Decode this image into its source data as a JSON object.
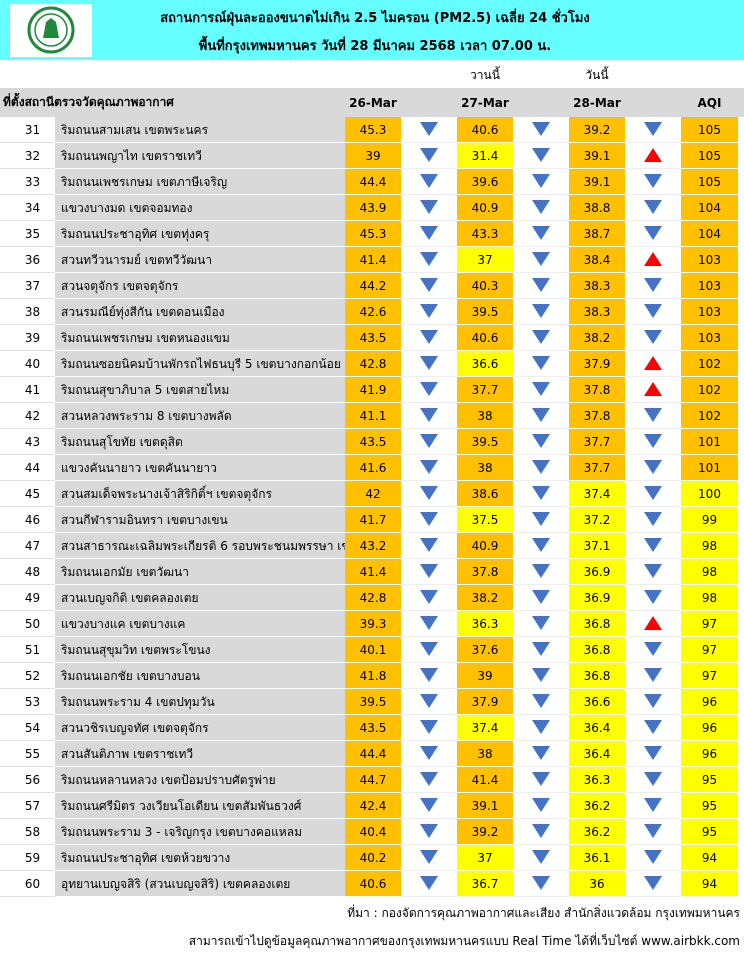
{
  "header": {
    "title": "สถานการณ์ฝุ่นละอองขนาดไม่เกิน 2.5 ไมครอน (PM2.5) เฉลี่ย 24 ชั่วโมง",
    "subtitle": "พื้นที่กรุงเทพมหานคร วันที่ 28 มีนาคม 2568 เวลา 07.00 น."
  },
  "table": {
    "day_labels": [
      "วานนี้",
      "วันนี้"
    ],
    "columns": [
      "ที่ตั้งสถานีตรวจวัดคุณภาพอากาศ",
      "26-Mar",
      "27-Mar",
      "28-Mar",
      "AQI"
    ],
    "fills": {
      "orange": "#ffc000",
      "yellow": "#ffff00"
    },
    "arrow_colors": {
      "down": "#4472c4",
      "up": "#ff0000"
    },
    "rows": [
      {
        "no": 31,
        "location": "ริมถนนสามเสน เขตพระนคร",
        "values": [
          45.3,
          40.6,
          39.2
        ],
        "aqi": 105,
        "arrows": [
          "down",
          "down",
          "down"
        ],
        "fill": [
          "orange",
          "orange",
          "orange",
          "orange"
        ]
      },
      {
        "no": 32,
        "location": "ริมถนนพญาไท เขตราชเทวี",
        "values": [
          39,
          31.4,
          39.1
        ],
        "aqi": 105,
        "arrows": [
          "down",
          "down",
          "up"
        ],
        "fill": [
          "orange",
          "yellow",
          "orange",
          "orange"
        ]
      },
      {
        "no": 33,
        "location": "ริมถนนเพชรเกษม เขตภาษีเจริญ",
        "values": [
          44.4,
          39.6,
          39.1
        ],
        "aqi": 105,
        "arrows": [
          "down",
          "down",
          "down"
        ],
        "fill": [
          "orange",
          "orange",
          "orange",
          "orange"
        ]
      },
      {
        "no": 34,
        "location": "แขวงบางมด เขตจอมทอง",
        "values": [
          43.9,
          40.9,
          38.8
        ],
        "aqi": 104,
        "arrows": [
          "down",
          "down",
          "down"
        ],
        "fill": [
          "orange",
          "orange",
          "orange",
          "orange"
        ]
      },
      {
        "no": 35,
        "location": "ริมถนนประชาอุทิศ เขตทุ่งครุ",
        "values": [
          45.3,
          43.3,
          38.7
        ],
        "aqi": 104,
        "arrows": [
          "down",
          "down",
          "down"
        ],
        "fill": [
          "orange",
          "orange",
          "orange",
          "orange"
        ]
      },
      {
        "no": 36,
        "location": "สวนทวีวนารมย์ เขตทวีวัฒนา",
        "values": [
          41.4,
          37,
          38.4
        ],
        "aqi": 103,
        "arrows": [
          "down",
          "down",
          "up"
        ],
        "fill": [
          "orange",
          "yellow",
          "orange",
          "orange"
        ]
      },
      {
        "no": 37,
        "location": "สวนจตุจักร เขตจตุจักร",
        "values": [
          44.2,
          40.3,
          38.3
        ],
        "aqi": 103,
        "arrows": [
          "down",
          "down",
          "down"
        ],
        "fill": [
          "orange",
          "orange",
          "orange",
          "orange"
        ]
      },
      {
        "no": 38,
        "location": "สวนรมณีย์ทุ่งสีกัน เขตดอนเมือง",
        "values": [
          42.6,
          39.5,
          38.3
        ],
        "aqi": 103,
        "arrows": [
          "down",
          "down",
          "down"
        ],
        "fill": [
          "orange",
          "orange",
          "orange",
          "orange"
        ]
      },
      {
        "no": 39,
        "location": "ริมถนนเพชรเกษม เขตหนองแขม",
        "values": [
          43.5,
          40.6,
          38.2
        ],
        "aqi": 103,
        "arrows": [
          "down",
          "down",
          "down"
        ],
        "fill": [
          "orange",
          "orange",
          "orange",
          "orange"
        ]
      },
      {
        "no": 40,
        "location": "ริมถนนซอยนิคมบ้านพักรถไฟธนบุรี 5 เขตบางกอกน้อย",
        "values": [
          42.8,
          36.6,
          37.9
        ],
        "aqi": 102,
        "arrows": [
          "down",
          "down",
          "up"
        ],
        "fill": [
          "orange",
          "yellow",
          "orange",
          "orange"
        ]
      },
      {
        "no": 41,
        "location": "ริมถนนสุขาภิบาล 5 เขตสายไหม",
        "values": [
          41.9,
          37.7,
          37.8
        ],
        "aqi": 102,
        "arrows": [
          "down",
          "down",
          "up"
        ],
        "fill": [
          "orange",
          "orange",
          "orange",
          "orange"
        ]
      },
      {
        "no": 42,
        "location": "สวนหลวงพระราม 8 เขตบางพลัด",
        "values": [
          41.1,
          38,
          37.8
        ],
        "aqi": 102,
        "arrows": [
          "down",
          "down",
          "down"
        ],
        "fill": [
          "orange",
          "orange",
          "orange",
          "orange"
        ]
      },
      {
        "no": 43,
        "location": "ริมถนนสุโขทัย เขตดุสิต",
        "values": [
          43.5,
          39.5,
          37.7
        ],
        "aqi": 101,
        "arrows": [
          "down",
          "down",
          "down"
        ],
        "fill": [
          "orange",
          "orange",
          "orange",
          "orange"
        ]
      },
      {
        "no": 44,
        "location": "แขวงคันนายาว เขตคันนายาว",
        "values": [
          41.6,
          38,
          37.7
        ],
        "aqi": 101,
        "arrows": [
          "down",
          "down",
          "down"
        ],
        "fill": [
          "orange",
          "orange",
          "orange",
          "orange"
        ]
      },
      {
        "no": 45,
        "location": "สวนสมเด็จพระนางเจ้าสิริกิติ์ฯ เขตจตุจักร",
        "values": [
          42,
          38.6,
          37.4
        ],
        "aqi": 100,
        "arrows": [
          "down",
          "down",
          "down"
        ],
        "fill": [
          "orange",
          "orange",
          "yellow",
          "yellow"
        ]
      },
      {
        "no": 46,
        "location": "สวนกีฬารามอินทรา เขตบางเขน",
        "values": [
          41.7,
          37.5,
          37.2
        ],
        "aqi": 99,
        "arrows": [
          "down",
          "down",
          "down"
        ],
        "fill": [
          "orange",
          "yellow",
          "yellow",
          "yellow"
        ]
      },
      {
        "no": 47,
        "location": "สวนสาธารณะเฉลิมพระเกียรติ 6 รอบพระชนมพรรษา เข",
        "values": [
          43.2,
          40.9,
          37.1
        ],
        "aqi": 98,
        "arrows": [
          "down",
          "down",
          "down"
        ],
        "fill": [
          "orange",
          "orange",
          "yellow",
          "yellow"
        ]
      },
      {
        "no": 48,
        "location": "ริมถนนเอกมัย เขตวัฒนา",
        "values": [
          41.4,
          37.8,
          36.9
        ],
        "aqi": 98,
        "arrows": [
          "down",
          "down",
          "down"
        ],
        "fill": [
          "orange",
          "orange",
          "yellow",
          "yellow"
        ]
      },
      {
        "no": 49,
        "location": "สวนเบญจกิติ เขตคลองเตย",
        "values": [
          42.8,
          38.2,
          36.9
        ],
        "aqi": 98,
        "arrows": [
          "down",
          "down",
          "down"
        ],
        "fill": [
          "orange",
          "orange",
          "yellow",
          "yellow"
        ]
      },
      {
        "no": 50,
        "location": "แขวงบางแค เขตบางแค",
        "values": [
          39.3,
          36.3,
          36.8
        ],
        "aqi": 97,
        "arrows": [
          "down",
          "down",
          "up"
        ],
        "fill": [
          "orange",
          "yellow",
          "yellow",
          "yellow"
        ]
      },
      {
        "no": 51,
        "location": "ริมถนนสุขุมวิท เขตพระโขนง",
        "values": [
          40.1,
          37.6,
          36.8
        ],
        "aqi": 97,
        "arrows": [
          "down",
          "down",
          "down"
        ],
        "fill": [
          "orange",
          "orange",
          "yellow",
          "yellow"
        ]
      },
      {
        "no": 52,
        "location": "ริมถนนเอกชัย เขตบางบอน",
        "values": [
          41.8,
          39,
          36.8
        ],
        "aqi": 97,
        "arrows": [
          "down",
          "down",
          "down"
        ],
        "fill": [
          "orange",
          "orange",
          "yellow",
          "yellow"
        ]
      },
      {
        "no": 53,
        "location": "ริมถนนพระราม 4 เขตปทุมวัน",
        "values": [
          39.5,
          37.9,
          36.6
        ],
        "aqi": 96,
        "arrows": [
          "down",
          "down",
          "down"
        ],
        "fill": [
          "orange",
          "orange",
          "yellow",
          "yellow"
        ]
      },
      {
        "no": 54,
        "location": "สวนวชิรเบญจทัศ เขตจตุจักร",
        "values": [
          43.5,
          37.4,
          36.4
        ],
        "aqi": 96,
        "arrows": [
          "down",
          "down",
          "down"
        ],
        "fill": [
          "orange",
          "yellow",
          "yellow",
          "yellow"
        ]
      },
      {
        "no": 55,
        "location": "สวนสันติภาพ เขตราชเทวี",
        "values": [
          44.4,
          38,
          36.4
        ],
        "aqi": 96,
        "arrows": [
          "down",
          "down",
          "down"
        ],
        "fill": [
          "orange",
          "orange",
          "yellow",
          "yellow"
        ]
      },
      {
        "no": 56,
        "location": "ริมถนนหลานหลวง เขตป้อมปราบศัตรูพ่าย",
        "values": [
          44.7,
          41.4,
          36.3
        ],
        "aqi": 95,
        "arrows": [
          "down",
          "down",
          "down"
        ],
        "fill": [
          "orange",
          "orange",
          "yellow",
          "yellow"
        ]
      },
      {
        "no": 57,
        "location": "ริมถนนศรีมิตร วงเวียนโอเดียน เขตสัมพันธวงศ์",
        "values": [
          42.4,
          39.1,
          36.2
        ],
        "aqi": 95,
        "arrows": [
          "down",
          "down",
          "down"
        ],
        "fill": [
          "orange",
          "orange",
          "yellow",
          "yellow"
        ]
      },
      {
        "no": 58,
        "location": "ริมถนนพระราม 3 - เจริญกรุง เขตบางคอแหลม",
        "values": [
          40.4,
          39.2,
          36.2
        ],
        "aqi": 95,
        "arrows": [
          "down",
          "down",
          "down"
        ],
        "fill": [
          "orange",
          "orange",
          "yellow",
          "yellow"
        ]
      },
      {
        "no": 59,
        "location": "ริมถนนประชาอุทิศ เขตห้วยขวาง",
        "values": [
          40.2,
          37,
          36.1
        ],
        "aqi": 94,
        "arrows": [
          "down",
          "down",
          "down"
        ],
        "fill": [
          "orange",
          "yellow",
          "yellow",
          "yellow"
        ]
      },
      {
        "no": 60,
        "location": "อุทยานเบญจสิริ (สวนเบญจสิริ) เขตคลองเตย",
        "values": [
          40.6,
          36.7,
          36
        ],
        "aqi": 94,
        "arrows": [
          "down",
          "down",
          "down"
        ],
        "fill": [
          "orange",
          "yellow",
          "yellow",
          "yellow"
        ]
      }
    ]
  },
  "footer": {
    "source": "ที่มา : กองจัดการคุณภาพอากาศและเสียง สำนักสิ่งแวดล้อม กรุงเทพมหานคร",
    "note": "สามารถเข้าไปดูข้อมูลคุณภาพอากาศของกรุงเทพมหานครแบบ Real Time ได้ที่เว็บไซต์ www.airbkk.com"
  }
}
